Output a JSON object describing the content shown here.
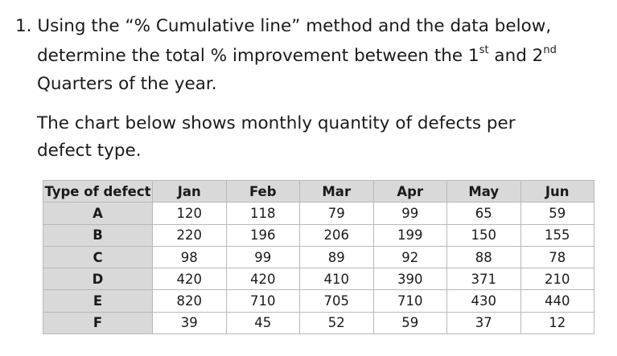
{
  "question": {
    "line1": "1. Using the “% Cumulative line” method and the data below,",
    "line2_pre": "determine the total % improvement between the 1",
    "line2_sup1": "st",
    "line2_mid": " and 2",
    "line2_sup2": "nd",
    "line3": "Quarters of the year.",
    "line4": "The chart below shows monthly quantity of defects per",
    "line5": "defect type."
  },
  "table": {
    "headers": [
      "Type of defect",
      "Jan",
      "Feb",
      "Mar",
      "Apr",
      "May",
      "Jun"
    ],
    "rows": [
      {
        "type": "A",
        "values": [
          "120",
          "118",
          "79",
          "99",
          "65",
          "59"
        ]
      },
      {
        "type": "B",
        "values": [
          "220",
          "196",
          "206",
          "199",
          "150",
          "155"
        ]
      },
      {
        "type": "C",
        "values": [
          "98",
          "99",
          "89",
          "92",
          "88",
          "78"
        ]
      },
      {
        "type": "D",
        "values": [
          "420",
          "420",
          "410",
          "390",
          "371",
          "210"
        ]
      },
      {
        "type": "E",
        "values": [
          "820",
          "710",
          "705",
          "710",
          "430",
          "440"
        ]
      },
      {
        "type": "F",
        "values": [
          "39",
          "45",
          "52",
          "59",
          "37",
          "12"
        ]
      }
    ]
  }
}
